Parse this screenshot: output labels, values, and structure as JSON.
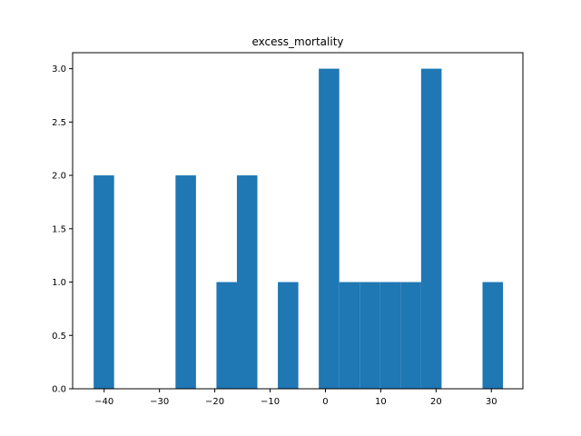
{
  "chart_data": {
    "type": "bar",
    "title": "excess_mortality",
    "xlabel": "",
    "ylabel": "",
    "xlim": [
      -45.7,
      35.7
    ],
    "ylim": [
      0,
      3.15
    ],
    "bar_color": "#1f77b4",
    "bins": [
      {
        "x0": -41.9,
        "x1": -38.2,
        "count": 2
      },
      {
        "x0": -38.2,
        "x1": -34.5,
        "count": 0
      },
      {
        "x0": -34.5,
        "x1": -30.8,
        "count": 0
      },
      {
        "x0": -30.8,
        "x1": -27.1,
        "count": 0
      },
      {
        "x0": -27.1,
        "x1": -23.4,
        "count": 2
      },
      {
        "x0": -23.4,
        "x1": -19.7,
        "count": 0
      },
      {
        "x0": -19.7,
        "x1": -16.0,
        "count": 1
      },
      {
        "x0": -16.0,
        "x1": -12.3,
        "count": 2
      },
      {
        "x0": -12.3,
        "x1": -8.6,
        "count": 0
      },
      {
        "x0": -8.6,
        "x1": -4.9,
        "count": 1
      },
      {
        "x0": -4.9,
        "x1": -1.2,
        "count": 0
      },
      {
        "x0": -1.2,
        "x1": 2.5,
        "count": 3
      },
      {
        "x0": 2.5,
        "x1": 6.2,
        "count": 1
      },
      {
        "x0": 6.2,
        "x1": 9.9,
        "count": 1
      },
      {
        "x0": 9.9,
        "x1": 13.6,
        "count": 1
      },
      {
        "x0": 13.6,
        "x1": 17.3,
        "count": 1
      },
      {
        "x0": 17.3,
        "x1": 21.0,
        "count": 3
      },
      {
        "x0": 21.0,
        "x1": 24.7,
        "count": 0
      },
      {
        "x0": 24.7,
        "x1": 28.4,
        "count": 0
      },
      {
        "x0": 28.4,
        "x1": 32.1,
        "count": 1
      }
    ],
    "x_ticks": [
      {
        "value": -40,
        "label": "−40"
      },
      {
        "value": -30,
        "label": "−30"
      },
      {
        "value": -20,
        "label": "−20"
      },
      {
        "value": -10,
        "label": "−10"
      },
      {
        "value": 0,
        "label": "0"
      },
      {
        "value": 10,
        "label": "10"
      },
      {
        "value": 20,
        "label": "20"
      },
      {
        "value": 30,
        "label": "30"
      }
    ],
    "y_ticks": [
      {
        "value": 0,
        "label": "0.0"
      },
      {
        "value": 0.5,
        "label": "0.5"
      },
      {
        "value": 1.0,
        "label": "1.0"
      },
      {
        "value": 1.5,
        "label": "1.5"
      },
      {
        "value": 2.0,
        "label": "2.0"
      },
      {
        "value": 2.5,
        "label": "2.5"
      },
      {
        "value": 3.0,
        "label": "3.0"
      }
    ],
    "grid": false,
    "legend": "none"
  }
}
